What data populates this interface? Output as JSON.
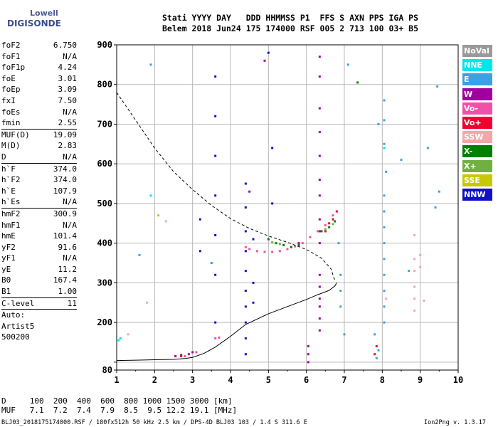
{
  "logo": {
    "line1": "Lowell",
    "line2": "DIGISONDE"
  },
  "header": {
    "line1": "Stati YYYY DAY   DDD HHMMSS P1  FFS S AXN PPS IGA PS",
    "line2": "Belem 2018 Jun24 175 174000 RSF 005 2 713 100 03+ B5"
  },
  "params": [
    {
      "k": "foF2",
      "v": "6.750"
    },
    {
      "k": "foF1",
      "v": "N/A"
    },
    {
      "k": "foF1p",
      "v": "4.24"
    },
    {
      "k": "foE",
      "v": "3.01"
    },
    {
      "k": "foEp",
      "v": "3.09"
    },
    {
      "k": "fxI",
      "v": "7.50"
    },
    {
      "k": "foEs",
      "v": "N/A"
    },
    {
      "k": "fmin",
      "v": "2.55"
    },
    {
      "sep": true
    },
    {
      "k": "MUF(D)",
      "v": "19.09"
    },
    {
      "k": "M(D)",
      "v": "2.83"
    },
    {
      "k": "D",
      "v": "N/A"
    },
    {
      "sep": true
    },
    {
      "k": "h`F",
      "v": "374.0"
    },
    {
      "k": "h`F2",
      "v": "374.0"
    },
    {
      "k": "h`E",
      "v": "107.9"
    },
    {
      "k": "h`Es",
      "v": "N/A"
    },
    {
      "sep": true
    },
    {
      "k": "hmF2",
      "v": "300.9"
    },
    {
      "k": "hmF1",
      "v": "N/A"
    },
    {
      "k": "hmE",
      "v": "101.4"
    },
    {
      "k": "yF2",
      "v": "91.6"
    },
    {
      "k": "yF1",
      "v": "N/A"
    },
    {
      "k": "yE",
      "v": "11.2"
    },
    {
      "k": "B0",
      "v": "167.4"
    },
    {
      "k": "B1",
      "v": "1.00"
    },
    {
      "sep": true
    },
    {
      "k": "C-level",
      "v": "11"
    },
    {
      "sep": true
    },
    {
      "k": "Auto:",
      "v": ""
    },
    {
      "k": "Artist5",
      "v": ""
    },
    {
      "k": "500200",
      "v": ""
    }
  ],
  "legend": [
    {
      "label": "NoVal",
      "color": "#999999"
    },
    {
      "label": "NNE",
      "color": "#00e5f0"
    },
    {
      "label": "E",
      "color": "#3aa0e8"
    },
    {
      "label": "W",
      "color": "#a000a0"
    },
    {
      "label": "Vo-",
      "color": "#f050a8"
    },
    {
      "label": "Vo+",
      "color": "#f00030"
    },
    {
      "label": "SSW",
      "color": "#f0a8a8"
    },
    {
      "label": "X-",
      "color": "#008000"
    },
    {
      "label": "X+",
      "color": "#70b040"
    },
    {
      "label": "SSE",
      "color": "#c8c800"
    },
    {
      "label": "NNW",
      "color": "#1010c8"
    }
  ],
  "bottom": {
    "line1": "D     100  200  400  600  800 1000 1500 3000 [km]",
    "line2": "MUF   7.1  7.2  7.4  7.9  8.5  9.5 12.2 19.1 [MHz]"
  },
  "footer": "BLJ03_2018175174000.RSF / 180fx512h 50 kHz 2.5 km / DPS-4D BLJ03 103 / 1.4 S 311.6 E",
  "version": "Ion2Png v. 1.3.17",
  "chart_data": {
    "type": "scatter",
    "xlim": [
      1,
      10
    ],
    "ylim": [
      80,
      900
    ],
    "x_ticks": [
      1,
      2,
      3,
      4,
      5,
      6,
      7,
      8,
      9,
      10
    ],
    "y_ticks": [
      80,
      100,
      200,
      300,
      400,
      500,
      600,
      700,
      800,
      900
    ],
    "y_tick_labels": [
      "80",
      "",
      "200",
      "300",
      "400",
      "500",
      "600",
      "700",
      "800",
      "900"
    ],
    "grid": true,
    "series": [
      {
        "name": "W",
        "color": "#a000a0",
        "points": [
          [
            2.55,
            115
          ],
          [
            2.7,
            118
          ],
          [
            2.9,
            120
          ],
          [
            3.0,
            125
          ],
          [
            6.35,
            180
          ],
          [
            6.35,
            210
          ],
          [
            6.35,
            240
          ],
          [
            6.35,
            260
          ],
          [
            6.35,
            290
          ],
          [
            6.35,
            320
          ],
          [
            6.35,
            400
          ],
          [
            6.35,
            430
          ],
          [
            6.35,
            460
          ],
          [
            6.35,
            520
          ],
          [
            6.35,
            560
          ],
          [
            6.35,
            620
          ],
          [
            6.35,
            680
          ],
          [
            6.35,
            740
          ],
          [
            6.35,
            820
          ],
          [
            6.35,
            870
          ],
          [
            6.05,
            100
          ],
          [
            6.05,
            120
          ],
          [
            6.05,
            140
          ],
          [
            5.8,
            400
          ],
          [
            4.5,
            530
          ],
          [
            4.9,
            860
          ]
        ]
      },
      {
        "name": "Vo-",
        "color": "#f050a8",
        "points": [
          [
            4.4,
            390
          ],
          [
            4.5,
            385
          ],
          [
            4.7,
            380
          ],
          [
            4.9,
            378
          ],
          [
            5.1,
            378
          ],
          [
            5.3,
            380
          ],
          [
            5.5,
            385
          ],
          [
            5.7,
            392
          ],
          [
            5.9,
            400
          ],
          [
            6.1,
            415
          ],
          [
            6.3,
            430
          ],
          [
            6.5,
            445
          ],
          [
            6.7,
            470
          ],
          [
            2.8,
            115
          ],
          [
            3.1,
            125
          ],
          [
            3.6,
            160
          ],
          [
            3.7,
            162
          ]
        ]
      },
      {
        "name": "Vo+",
        "color": "#f00030",
        "points": [
          [
            6.5,
            430
          ],
          [
            6.6,
            450
          ],
          [
            6.7,
            460
          ],
          [
            6.8,
            480
          ],
          [
            2.7,
            115
          ],
          [
            7.8,
            120
          ],
          [
            7.85,
            140
          ]
        ]
      },
      {
        "name": "X-",
        "color": "#008000",
        "points": [
          [
            5.0,
            410
          ],
          [
            5.2,
            400
          ],
          [
            5.4,
            395
          ],
          [
            5.6,
            390
          ],
          [
            5.8,
            395
          ],
          [
            6.4,
            430
          ],
          [
            6.6,
            440
          ],
          [
            6.75,
            455
          ],
          [
            7.35,
            805
          ]
        ]
      },
      {
        "name": "X+",
        "color": "#70b040",
        "points": [
          [
            5.1,
            402
          ],
          [
            5.3,
            398
          ],
          [
            6.5,
            435
          ],
          [
            6.7,
            448
          ]
        ]
      },
      {
        "name": "NNW",
        "color": "#1010c8",
        "points": [
          [
            3.2,
            380
          ],
          [
            3.2,
            460
          ],
          [
            3.6,
            200
          ],
          [
            3.6,
            320
          ],
          [
            3.6,
            420
          ],
          [
            3.6,
            520
          ],
          [
            3.6,
            620
          ],
          [
            3.6,
            720
          ],
          [
            3.6,
            820
          ],
          [
            4.4,
            120
          ],
          [
            4.4,
            160
          ],
          [
            4.4,
            200
          ],
          [
            4.4,
            240
          ],
          [
            4.4,
            280
          ],
          [
            4.4,
            330
          ],
          [
            4.4,
            380
          ],
          [
            4.4,
            430
          ],
          [
            4.4,
            490
          ],
          [
            4.4,
            550
          ],
          [
            4.6,
            250
          ],
          [
            4.6,
            300
          ],
          [
            4.6,
            410
          ],
          [
            5.1,
            500
          ],
          [
            5.1,
            640
          ],
          [
            5.0,
            880
          ]
        ]
      },
      {
        "name": "E",
        "color": "#3aa0e8",
        "points": [
          [
            8.05,
            200
          ],
          [
            8.05,
            240
          ],
          [
            8.05,
            280
          ],
          [
            8.05,
            320
          ],
          [
            8.05,
            360
          ],
          [
            8.05,
            400
          ],
          [
            8.05,
            440
          ],
          [
            8.05,
            480
          ],
          [
            8.05,
            520
          ],
          [
            8.1,
            580
          ],
          [
            8.05,
            650
          ],
          [
            8.05,
            710
          ],
          [
            8.05,
            760
          ],
          [
            7.85,
            110
          ],
          [
            7.9,
            130
          ],
          [
            7.8,
            170
          ],
          [
            6.9,
            240
          ],
          [
            6.9,
            280
          ],
          [
            6.9,
            320
          ],
          [
            6.85,
            400
          ],
          [
            7.0,
            170
          ],
          [
            1.9,
            850
          ],
          [
            1.6,
            370
          ],
          [
            3.5,
            350
          ],
          [
            9.4,
            490
          ],
          [
            9.5,
            530
          ],
          [
            9.45,
            795
          ],
          [
            9.2,
            640
          ],
          [
            7.1,
            850
          ],
          [
            8.7,
            330
          ],
          [
            7.9,
            700
          ],
          [
            8.5,
            610
          ]
        ]
      },
      {
        "name": "SSW",
        "color": "#f0a8a8",
        "points": [
          [
            8.85,
            230
          ],
          [
            8.85,
            260
          ],
          [
            8.85,
            290
          ],
          [
            8.85,
            330
          ],
          [
            8.85,
            360
          ],
          [
            8.85,
            420
          ],
          [
            9.0,
            340
          ],
          [
            9.0,
            370
          ],
          [
            8.1,
            260
          ],
          [
            9.1,
            255
          ],
          [
            1.3,
            170
          ],
          [
            1.8,
            250
          ],
          [
            2.3,
            455
          ]
        ]
      },
      {
        "name": "NNE",
        "color": "#00e5f0",
        "points": [
          [
            1.05,
            155
          ],
          [
            1.1,
            160
          ],
          [
            1.9,
            520
          ],
          [
            8.05,
            640
          ]
        ]
      },
      {
        "name": "SSE",
        "color": "#c8c800",
        "points": [
          [
            2.1,
            470
          ]
        ]
      }
    ],
    "curves": [
      {
        "name": "true_height",
        "style": "solid",
        "points": [
          [
            1.0,
            104
          ],
          [
            1.5,
            105
          ],
          [
            2.0,
            106
          ],
          [
            2.5,
            107
          ],
          [
            2.8,
            109
          ],
          [
            3.0,
            112
          ],
          [
            3.3,
            122
          ],
          [
            3.6,
            138
          ],
          [
            4.0,
            165
          ],
          [
            4.4,
            195
          ],
          [
            5.0,
            222
          ],
          [
            5.5,
            240
          ],
          [
            6.0,
            258
          ],
          [
            6.3,
            270
          ],
          [
            6.6,
            281
          ],
          [
            6.75,
            292
          ],
          [
            6.8,
            300
          ]
        ]
      },
      {
        "name": "model_trace",
        "style": "dashed",
        "points": [
          [
            1.0,
            780
          ],
          [
            1.5,
            710
          ],
          [
            2.0,
            640
          ],
          [
            2.5,
            580
          ],
          [
            3.0,
            535
          ],
          [
            3.5,
            495
          ],
          [
            4.0,
            462
          ],
          [
            4.5,
            437
          ],
          [
            5.0,
            418
          ],
          [
            5.5,
            402
          ],
          [
            6.0,
            384
          ],
          [
            6.4,
            362
          ],
          [
            6.65,
            335
          ],
          [
            6.75,
            305
          ]
        ]
      }
    ]
  }
}
